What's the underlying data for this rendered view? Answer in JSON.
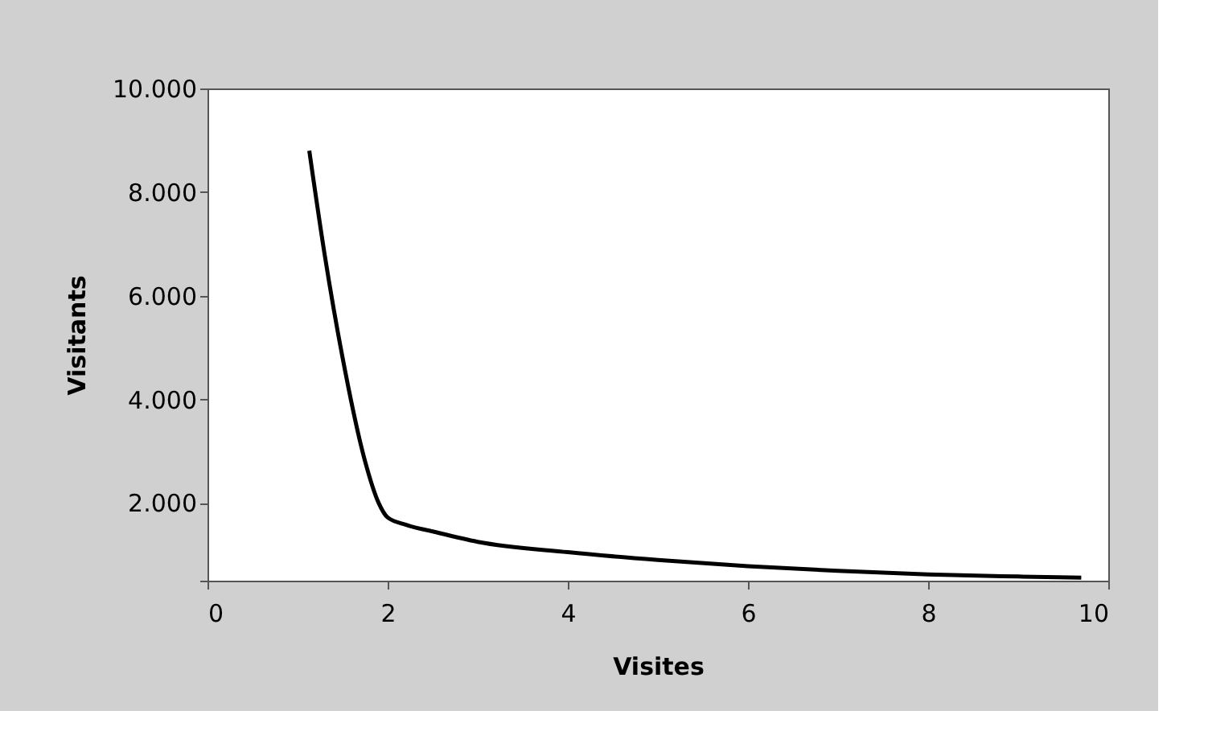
{
  "chart_data": {
    "type": "line",
    "xlabel": "Visites",
    "ylabel": "Visitants",
    "x": [
      1.13,
      1.3,
      1.5,
      1.75,
      1.9,
      2.0,
      2.2,
      2.5,
      3,
      4,
      5,
      6,
      7,
      8,
      9,
      9.7
    ],
    "series": [
      {
        "color": "#000000",
        "values": [
          8800,
          6800,
          4800,
          2800,
          2000,
          1720,
          1580,
          1450,
          1250,
          1050,
          900,
          780,
          690,
          620,
          580,
          560
        ]
      }
    ],
    "xlim": [
      0,
      10
    ],
    "xticks": [
      0,
      2,
      4,
      6,
      8,
      10
    ],
    "ylim": [
      500,
      10000
    ],
    "yticks": [
      {
        "value": 500,
        "label": null
      },
      {
        "value": 2000,
        "label": "2.000"
      },
      {
        "value": 4000,
        "label": "4.000"
      },
      {
        "value": 6000,
        "label": "6.000"
      },
      {
        "value": 8000,
        "label": "8.000"
      },
      {
        "value": 10000,
        "label": "10.000"
      }
    ],
    "grid": false,
    "marker": "none",
    "line_style": "solid"
  }
}
